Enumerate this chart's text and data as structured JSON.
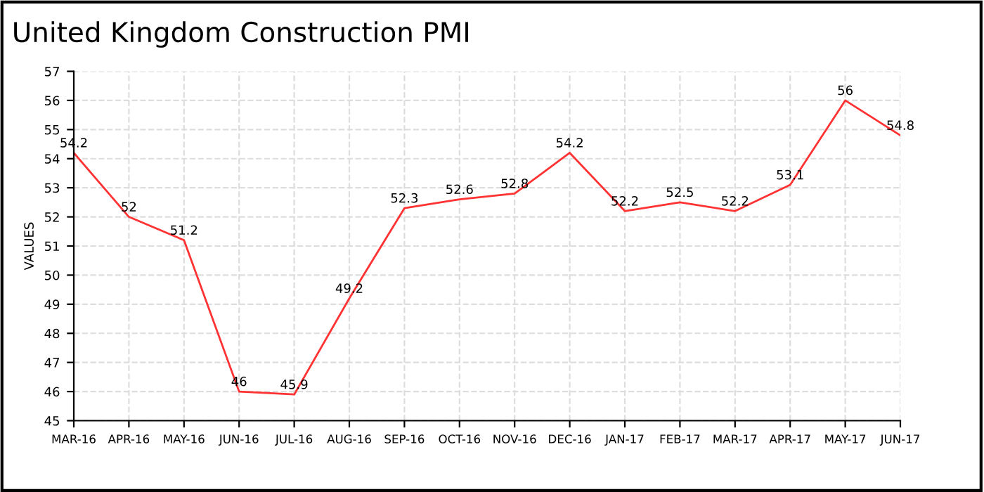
{
  "chart_data": {
    "type": "line",
    "title": "United Kingdom Construction PMI",
    "ylabel": "VALUES",
    "categories": [
      "MAR-16",
      "APR-16",
      "MAY-16",
      "JUN-16",
      "JUL-16",
      "AUG-16",
      "SEP-16",
      "OCT-16",
      "NOV-16",
      "DEC-16",
      "JAN-17",
      "FEB-17",
      "MAR-17",
      "APR-17",
      "MAY-17",
      "JUN-17"
    ],
    "series": [
      {
        "color": "#ff3333",
        "values": [
          54.2,
          52,
          51.2,
          46,
          45.9,
          49.2,
          52.3,
          52.6,
          52.8,
          54.2,
          52.2,
          52.5,
          52.2,
          53.1,
          56,
          54.8
        ]
      }
    ],
    "ylim": [
      45,
      57
    ],
    "yticks": [
      45,
      46,
      47,
      48,
      49,
      50,
      51,
      52,
      53,
      54,
      55,
      56,
      57
    ],
    "grid": true,
    "data_labels": true,
    "marker": "none",
    "line_style": "solid"
  }
}
